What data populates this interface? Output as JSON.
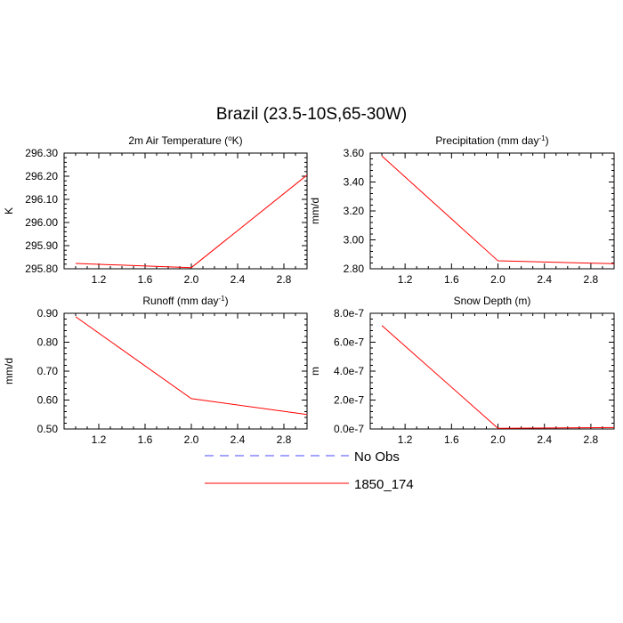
{
  "figure": {
    "title": "Brazil (23.5-10S,65-30W)"
  },
  "legend": {
    "entries": [
      {
        "label": "No Obs",
        "color": "#4a4aff",
        "dashed": true
      },
      {
        "label": "1850_174",
        "color": "#ff0000",
        "dashed": false
      }
    ]
  },
  "chart_data": [
    {
      "type": "line",
      "title_main": "2m Air Temperature (",
      "title_sup": "o",
      "title_end": "K)",
      "ylabel": "K",
      "xlim": [
        0.9,
        3.0
      ],
      "ylim": [
        295.8,
        296.3
      ],
      "xticks": [
        1.2,
        1.6,
        2.0,
        2.4,
        2.8
      ],
      "xtick_labels": [
        "1.2",
        "1.6",
        "2.0",
        "2.4",
        "2.8"
      ],
      "yticks": [
        295.8,
        295.9,
        296.0,
        296.1,
        296.2,
        296.3
      ],
      "ytick_labels": [
        "295.80",
        "295.90",
        "296.00",
        "296.10",
        "296.20",
        "296.30"
      ],
      "series": [
        {
          "color": "#ff0000",
          "x": [
            1.0,
            2.0,
            3.0
          ],
          "y": [
            295.823,
            295.805,
            296.205
          ]
        }
      ]
    },
    {
      "type": "line",
      "title_main": "Precipitation (mm day",
      "title_sup": "-1",
      "title_end": ")",
      "ylabel": "mm/d",
      "xlim": [
        0.9,
        3.0
      ],
      "ylim": [
        2.8,
        3.6
      ],
      "xticks": [
        1.2,
        1.6,
        2.0,
        2.4,
        2.8
      ],
      "xtick_labels": [
        "1.2",
        "1.6",
        "2.0",
        "2.4",
        "2.8"
      ],
      "yticks": [
        2.8,
        3.0,
        3.2,
        3.4,
        3.6
      ],
      "ytick_labels": [
        "2.80",
        "3.00",
        "3.20",
        "3.40",
        "3.60"
      ],
      "series": [
        {
          "color": "#ff0000",
          "x": [
            1.0,
            2.0,
            3.0
          ],
          "y": [
            3.58,
            2.855,
            2.835
          ]
        }
      ]
    },
    {
      "type": "line",
      "title_main": "Runoff (mm day",
      "title_sup": "-1",
      "title_end": ")",
      "ylabel": "mm/d",
      "xlim": [
        0.9,
        3.0
      ],
      "ylim": [
        0.5,
        0.9
      ],
      "xticks": [
        1.2,
        1.6,
        2.0,
        2.4,
        2.8
      ],
      "xtick_labels": [
        "1.2",
        "1.6",
        "2.0",
        "2.4",
        "2.8"
      ],
      "yticks": [
        0.5,
        0.6,
        0.7,
        0.8,
        0.9
      ],
      "ytick_labels": [
        "0.50",
        "0.60",
        "0.70",
        "0.80",
        "0.90"
      ],
      "series": [
        {
          "color": "#ff0000",
          "x": [
            1.0,
            2.0,
            3.0
          ],
          "y": [
            0.888,
            0.605,
            0.55
          ]
        }
      ]
    },
    {
      "type": "line",
      "title_main": "Snow Depth (m)",
      "title_sup": "",
      "title_end": "",
      "ylabel": "m",
      "xlim": [
        0.9,
        3.0
      ],
      "ylim": [
        0.0,
        8e-07
      ],
      "xticks": [
        1.2,
        1.6,
        2.0,
        2.4,
        2.8
      ],
      "xtick_labels": [
        "1.2",
        "1.6",
        "2.0",
        "2.4",
        "2.8"
      ],
      "yticks": [
        0.0,
        2e-07,
        4e-07,
        6e-07,
        8e-07
      ],
      "ytick_labels": [
        "0.0e-7",
        "2.0e-7",
        "4.0e-7",
        "6.0e-7",
        "8.0e-7"
      ],
      "series": [
        {
          "color": "#ff0000",
          "x": [
            1.0,
            2.0,
            3.0
          ],
          "y": [
            7.15e-07,
            5e-09,
            1e-08
          ]
        }
      ]
    }
  ]
}
